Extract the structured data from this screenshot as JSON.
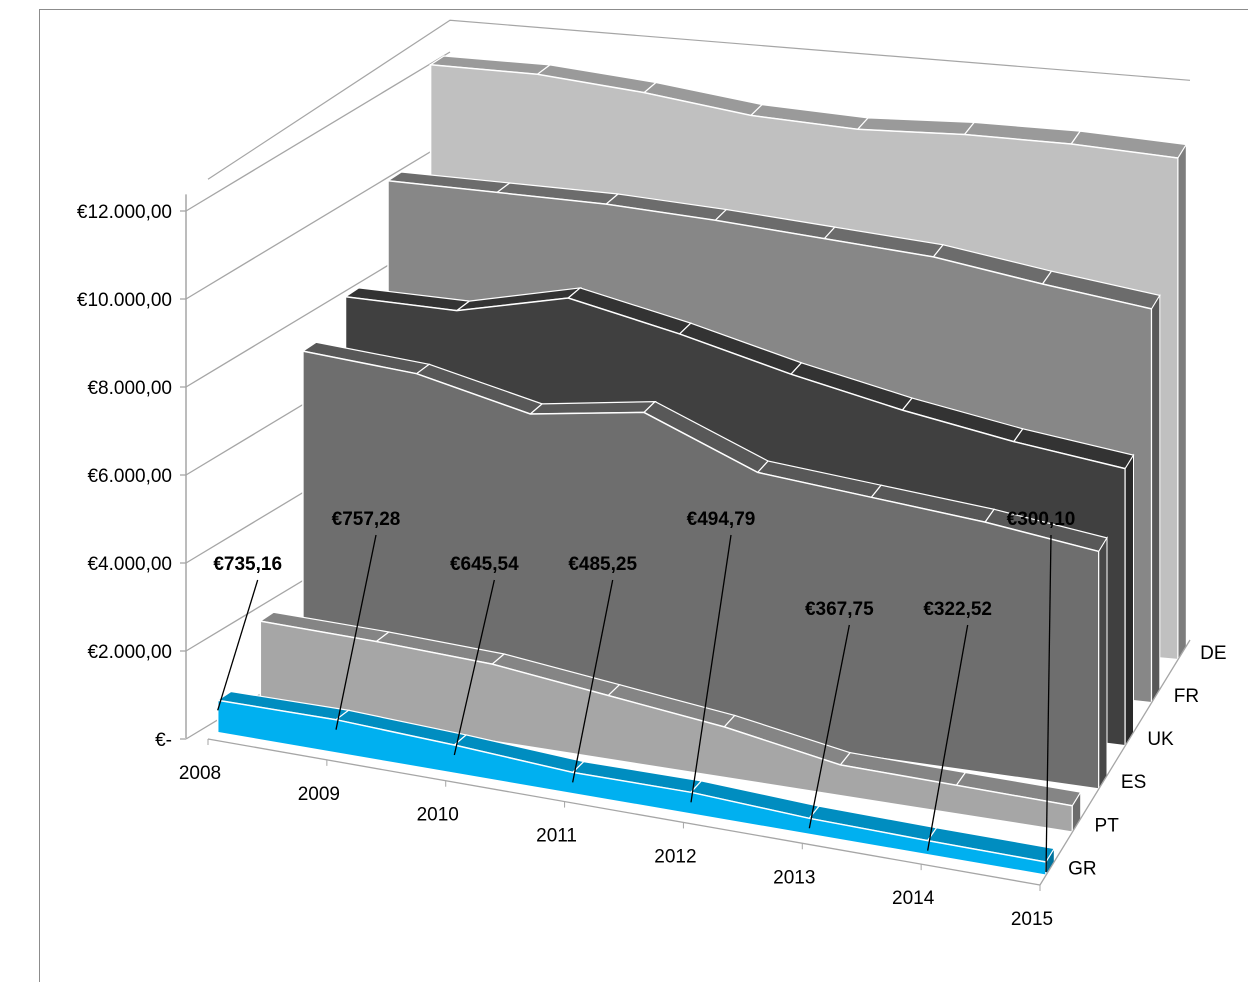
{
  "chart_data": {
    "type": "area",
    "view": "3d",
    "title": "",
    "xlabel": "",
    "ylabel": "",
    "categories": [
      "2008",
      "2009",
      "2010",
      "2011",
      "2012",
      "2013",
      "2014",
      "2015"
    ],
    "y_tick_labels": [
      "€-",
      "€2.000,00",
      "€4.000,00",
      "€6.000,00",
      "€8.000,00",
      "€10.000,00",
      "€12.000,00"
    ],
    "ylim": [
      0,
      12000
    ],
    "grid": false,
    "legend": "none",
    "series": [
      {
        "name": "GR",
        "color": "#00b0f0",
        "values": [
          735.16,
          757.28,
          645.54,
          485.25,
          494.79,
          367.75,
          322.52,
          300.1
        ]
      },
      {
        "name": "PT",
        "color": "#a6a6a6",
        "values": [
          1900,
          1850,
          1750,
          1450,
          1150,
          700,
          650,
          600
        ]
      },
      {
        "name": "ES",
        "color": "#6e6e6e",
        "values": [
          7400,
          7250,
          6700,
          7100,
          6100,
          5900,
          5700,
          5400
        ]
      },
      {
        "name": "UK",
        "color": "#404040",
        "values": [
          8000,
          8000,
          8600,
          8100,
          7500,
          7000,
          6600,
          6300
        ]
      },
      {
        "name": "FR",
        "color": "#878787",
        "values": [
          10000,
          10000,
          10000,
          9900,
          9750,
          9600,
          9250,
          8950
        ]
      },
      {
        "name": "DE",
        "color": "#c0c0c0",
        "values": [
          12000,
          12000,
          11800,
          11500,
          11400,
          11500,
          11500,
          11400
        ]
      }
    ],
    "data_labels": [
      "€735,16",
      "€757,28",
      "€645,54",
      "€485,25",
      "€494,79",
      "€367,75",
      "€322,52",
      "€300,10"
    ]
  }
}
